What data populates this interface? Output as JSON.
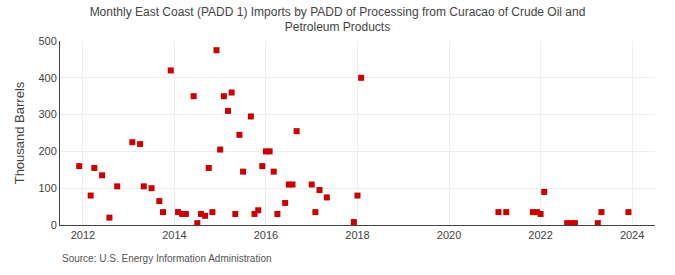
{
  "chart_data": {
    "type": "scatter",
    "title": "Monthly East Coast (PADD 1) Imports by PADD of Processing from Curacao of Crude Oil and\nPetroleum Products",
    "ylabel": "Thousand Barrels",
    "annotations": [
      "Source: U.S. Energy Information Administration"
    ],
    "color": "#cc0000",
    "marker": "square",
    "grid": true,
    "xlim": [
      2011.5,
      2024.5
    ],
    "ylim": [
      0,
      500
    ],
    "xticks": [
      2012,
      2014,
      2016,
      2018,
      2020,
      2022,
      2024
    ],
    "yticks": [
      0,
      100,
      200,
      300,
      400,
      500
    ],
    "x": [
      2011.92,
      2012.17,
      2012.25,
      2012.42,
      2012.58,
      2012.75,
      2013.08,
      2013.25,
      2013.33,
      2013.5,
      2013.67,
      2013.75,
      2013.92,
      2014.08,
      2014.17,
      2014.25,
      2014.42,
      2014.5,
      2014.58,
      2014.67,
      2014.75,
      2014.83,
      2014.92,
      2015.0,
      2015.08,
      2015.17,
      2015.25,
      2015.33,
      2015.42,
      2015.5,
      2015.67,
      2015.75,
      2015.83,
      2015.92,
      2016.0,
      2016.08,
      2016.17,
      2016.25,
      2016.42,
      2016.5,
      2016.58,
      2016.67,
      2017.0,
      2017.08,
      2017.17,
      2017.33,
      2017.92,
      2018.0,
      2018.08,
      2021.08,
      2021.25,
      2021.83,
      2021.92,
      2022.0,
      2022.08,
      2022.58,
      2022.67,
      2022.75,
      2023.25,
      2023.33,
      2023.92
    ],
    "values": [
      160,
      80,
      155,
      135,
      20,
      105,
      225,
      220,
      105,
      100,
      65,
      35,
      420,
      35,
      30,
      30,
      350,
      5,
      30,
      25,
      155,
      35,
      475,
      205,
      350,
      310,
      360,
      30,
      245,
      145,
      295,
      30,
      40,
      160,
      200,
      200,
      145,
      30,
      60,
      110,
      110,
      255,
      110,
      35,
      95,
      75,
      8,
      80,
      400,
      35,
      35,
      35,
      35,
      30,
      90,
      5,
      5,
      5,
      5,
      35,
      35
    ]
  }
}
